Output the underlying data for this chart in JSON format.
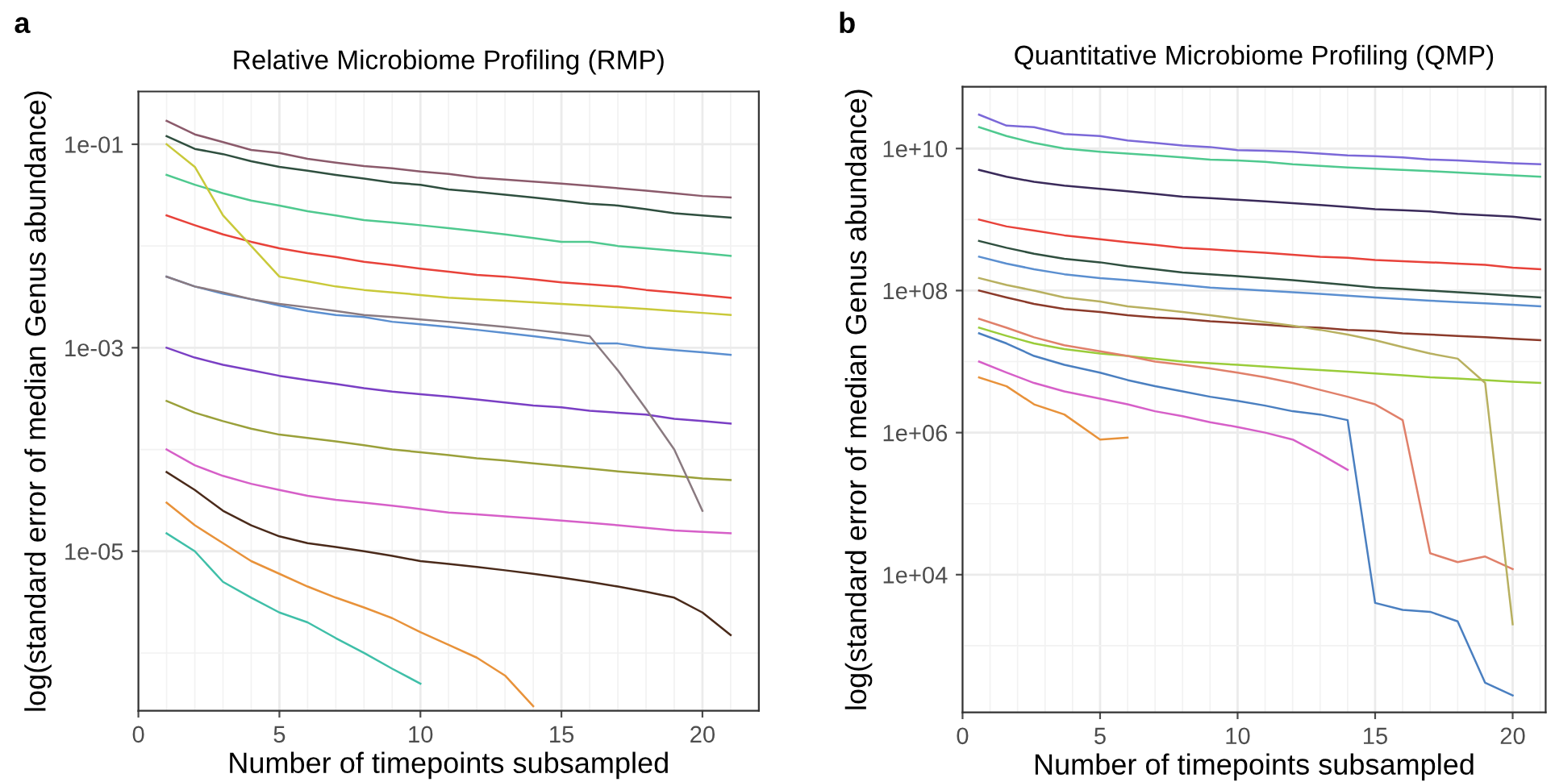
{
  "chart_data": [
    {
      "type": "line",
      "title": "Relative Microbiome Profiling (RMP)",
      "xlabel": "Number of timepoints subsampled",
      "ylabel": "log(standard error of median Genus abundance)",
      "annotations": [
        "a"
      ],
      "log": "y",
      "grid": true,
      "legend": false,
      "marker": "none",
      "line_style": "solid",
      "xlim": [
        0,
        22
      ],
      "xticks": [
        0,
        {
          "value": 1,
          "label": null
        },
        {
          "value": 2,
          "label": null
        },
        {
          "value": 3,
          "label": null
        },
        {
          "value": 4,
          "label": null
        },
        5,
        {
          "value": 6,
          "label": null
        },
        {
          "value": 7,
          "label": null
        },
        {
          "value": 8,
          "label": null
        },
        {
          "value": 9,
          "label": null
        },
        10,
        {
          "value": 11,
          "label": null
        },
        {
          "value": 12,
          "label": null
        },
        {
          "value": 13,
          "label": null
        },
        {
          "value": 14,
          "label": null
        },
        15,
        {
          "value": 16,
          "label": null
        },
        {
          "value": 17,
          "label": null
        },
        {
          "value": 18,
          "label": null
        },
        {
          "value": 19,
          "label": null
        },
        20,
        {
          "value": 21,
          "label": null
        }
      ],
      "ylim": [
        2.7e-07,
        0.33
      ],
      "yticks": [
        {
          "value": 1e-06,
          "label": null
        },
        {
          "value": 1e-05,
          "label": "1e-05"
        },
        {
          "value": 0.0001,
          "label": null
        },
        {
          "value": 0.001,
          "label": "1e-03"
        },
        {
          "value": 0.01,
          "label": null
        },
        {
          "value": 0.1,
          "label": "1e-01"
        }
      ],
      "x": [
        1,
        2,
        3,
        4,
        5,
        6,
        7,
        8,
        9,
        10,
        11,
        12,
        13,
        14,
        15,
        16,
        17,
        18,
        19,
        20,
        21
      ],
      "series": [
        {
          "color": "#8b5a6b",
          "values": [
            0.17,
            0.125,
            0.105,
            0.088,
            0.082,
            0.072,
            0.066,
            0.061,
            0.058,
            0.054,
            0.051,
            0.047,
            0.045,
            0.043,
            0.041,
            0.039,
            0.037,
            0.035,
            0.033,
            0.031,
            0.03
          ]
        },
        {
          "color": "#2f4f3f",
          "values": [
            0.12,
            0.09,
            0.08,
            0.068,
            0.06,
            0.055,
            0.05,
            0.046,
            0.042,
            0.04,
            0.036,
            0.034,
            0.032,
            0.03,
            0.028,
            0.026,
            0.025,
            0.023,
            0.021,
            0.02,
            0.019
          ]
        },
        {
          "color": "#4fc98f",
          "values": [
            0.05,
            0.04,
            0.033,
            0.028,
            0.025,
            0.022,
            0.02,
            0.018,
            0.017,
            0.016,
            0.015,
            0.014,
            0.013,
            0.012,
            0.011,
            0.011,
            0.01,
            0.0095,
            0.009,
            0.0085,
            0.008
          ]
        },
        {
          "color": "#e8423a",
          "values": [
            0.02,
            0.016,
            0.013,
            0.011,
            0.0095,
            0.0085,
            0.0078,
            0.007,
            0.0065,
            0.006,
            0.0056,
            0.0052,
            0.005,
            0.0047,
            0.0044,
            0.0042,
            0.004,
            0.0037,
            0.0035,
            0.0033,
            0.0031
          ]
        },
        {
          "color": "#5b8fd0",
          "values": [
            0.005,
            0.004,
            0.0034,
            0.003,
            0.0026,
            0.0023,
            0.0021,
            0.002,
            0.0018,
            0.0017,
            0.0016,
            0.0015,
            0.0014,
            0.0013,
            0.0012,
            0.0011,
            0.0011,
            0.001,
            0.00095,
            0.0009,
            0.00085
          ]
        },
        {
          "color": "#7a3fc4",
          "values": [
            0.001,
            0.0008,
            0.00068,
            0.0006,
            0.00053,
            0.00048,
            0.00044,
            0.0004,
            0.00037,
            0.00035,
            0.00033,
            0.00031,
            0.00029,
            0.00027,
            0.00026,
            0.00024,
            0.00023,
            0.00022,
            0.0002,
            0.00019,
            0.00018
          ]
        },
        {
          "color": "#9aa03a",
          "values": [
            0.0003,
            0.00023,
            0.00019,
            0.00016,
            0.00014,
            0.00013,
            0.00012,
            0.00011,
            0.0001,
            9.4e-05,
            8.8e-05,
            8.2e-05,
            7.8e-05,
            7.3e-05,
            6.9e-05,
            6.5e-05,
            6.1e-05,
            5.8e-05,
            5.5e-05,
            5.2e-05,
            5e-05
          ]
        },
        {
          "color": "#d65fc8",
          "values": [
            0.0001,
            7e-05,
            5.5e-05,
            4.6e-05,
            4e-05,
            3.5e-05,
            3.2e-05,
            3e-05,
            2.8e-05,
            2.6e-05,
            2.4e-05,
            2.3e-05,
            2.2e-05,
            2.1e-05,
            2e-05,
            1.9e-05,
            1.8e-05,
            1.7e-05,
            1.6e-05,
            1.55e-05,
            1.5e-05
          ]
        },
        {
          "color": "#e8923a",
          "values": [
            3e-05,
            1.8e-05,
            1.2e-05,
            8e-06,
            6e-06,
            4.5e-06,
            3.5e-06,
            2.8e-06,
            2.2e-06,
            1.6e-06,
            1.2e-06,
            9e-07,
            6e-07,
            3e-07,
            null,
            null,
            null,
            null,
            null,
            null,
            null
          ]
        },
        {
          "color": "#3fbfa8",
          "values": [
            1.5e-05,
            1e-05,
            5e-06,
            3.5e-06,
            2.5e-06,
            2e-06,
            1.4e-06,
            1e-06,
            7e-07,
            5e-07,
            null,
            null,
            null,
            null,
            null,
            null,
            null,
            null,
            null,
            null,
            null
          ]
        },
        {
          "color": "#c9c93a",
          "values": [
            0.1,
            0.06,
            0.02,
            0.01,
            0.005,
            0.0045,
            0.004,
            0.0037,
            0.0035,
            0.0033,
            0.0031,
            0.003,
            0.0029,
            0.0028,
            0.0027,
            0.0026,
            0.0025,
            0.0024,
            0.0023,
            0.0022,
            0.0021
          ]
        },
        {
          "color": "#8a7a80",
          "values": [
            0.005,
            0.004,
            0.0035,
            0.003,
            0.0027,
            0.0025,
            0.0023,
            0.0021,
            0.002,
            0.0019,
            0.0018,
            0.0017,
            0.0016,
            0.0015,
            0.0014,
            0.0013,
            0.0006,
            0.00025,
            0.0001,
            2.5e-05,
            null
          ]
        },
        {
          "color": "#4a2a1a",
          "values": [
            6e-05,
            4e-05,
            2.5e-05,
            1.8e-05,
            1.4e-05,
            1.2e-05,
            1.1e-05,
            1e-05,
            9e-06,
            8e-06,
            7.5e-06,
            7e-06,
            6.5e-06,
            6e-06,
            5.5e-06,
            5e-06,
            4.5e-06,
            4e-06,
            3.5e-06,
            2.5e-06,
            1.5e-06
          ]
        }
      ]
    },
    {
      "type": "line",
      "title": "Quantitative Microbiome Profiling (QMP)",
      "xlabel": "Number of timepoints subsampled",
      "ylabel": "log(standard error of median Genus abundance)",
      "annotations": [
        "b"
      ],
      "log": "y",
      "grid": true,
      "legend": false,
      "marker": "none",
      "line_style": "solid",
      "xlim": [
        0,
        21.2
      ],
      "xticks": [
        0,
        {
          "value": 1,
          "label": null
        },
        {
          "value": 2,
          "label": null
        },
        {
          "value": 3,
          "label": null
        },
        {
          "value": 4,
          "label": null
        },
        5,
        {
          "value": 6,
          "label": null
        },
        {
          "value": 7,
          "label": null
        },
        {
          "value": 8,
          "label": null
        },
        {
          "value": 9,
          "label": null
        },
        10,
        {
          "value": 11,
          "label": null
        },
        {
          "value": 12,
          "label": null
        },
        {
          "value": 13,
          "label": null
        },
        {
          "value": 14,
          "label": null
        },
        15,
        {
          "value": 16,
          "label": null
        },
        {
          "value": 17,
          "label": null
        },
        {
          "value": 18,
          "label": null
        },
        {
          "value": 19,
          "label": null
        },
        20,
        {
          "value": 21,
          "label": null
        }
      ],
      "ylim": [
        115,
        74000000000.0
      ],
      "yticks": [
        {
          "value": 1000.0,
          "label": null
        },
        {
          "value": 10000.0,
          "label": "1e+04"
        },
        {
          "value": 100000.0,
          "label": null
        },
        {
          "value": 1000000.0,
          "label": "1e+06"
        },
        {
          "value": 10000000.0,
          "label": null
        },
        {
          "value": 100000000.0,
          "label": "1e+08"
        },
        {
          "value": 1000000000.0,
          "label": null
        },
        {
          "value": 10000000000.0,
          "label": "1e+10"
        }
      ],
      "x": [
        0.6,
        1.6,
        2.6,
        3.7,
        5,
        6,
        7,
        8,
        9,
        10,
        11,
        12,
        13,
        14,
        15,
        16,
        17,
        18,
        19,
        20,
        21
      ],
      "series": [
        {
          "color": "#7b68d8",
          "values": [
            30000000000.0,
            21000000000.0,
            20000000000.0,
            16000000000.0,
            15000000000.0,
            13000000000.0,
            12000000000.0,
            11000000000.0,
            10500000000.0,
            9500000000.0,
            9300000000.0,
            9000000000.0,
            8500000000.0,
            8000000000.0,
            7800000000.0,
            7500000000.0,
            7000000000.0,
            6800000000.0,
            6500000000.0,
            6200000000.0,
            6000000000.0
          ]
        },
        {
          "color": "#4fc98f",
          "values": [
            20000000000.0,
            15000000000.0,
            12000000000.0,
            10000000000.0,
            9000000000.0,
            8500000000.0,
            8000000000.0,
            7500000000.0,
            7000000000.0,
            6800000000.0,
            6500000000.0,
            6000000000.0,
            5700000000.0,
            5400000000.0,
            5200000000.0,
            5000000000.0,
            4800000000.0,
            4600000000.0,
            4400000000.0,
            4200000000.0,
            4000000000.0
          ]
        },
        {
          "color": "#3a2a5a",
          "values": [
            5000000000.0,
            4000000000.0,
            3400000000.0,
            3000000000.0,
            2700000000.0,
            2500000000.0,
            2300000000.0,
            2100000000.0,
            2000000000.0,
            1900000000.0,
            1800000000.0,
            1700000000.0,
            1600000000.0,
            1500000000.0,
            1400000000.0,
            1350000000.0,
            1300000000.0,
            1200000000.0,
            1150000000.0,
            1100000000.0,
            1000000000.0
          ]
        },
        {
          "color": "#e8423a",
          "values": [
            1000000000.0,
            800000000.0,
            700000000.0,
            600000000.0,
            530000000.0,
            480000000.0,
            440000000.0,
            400000000.0,
            380000000.0,
            360000000.0,
            340000000.0,
            320000000.0,
            300000000.0,
            290000000.0,
            270000000.0,
            260000000.0,
            250000000.0,
            240000000.0,
            230000000.0,
            210000000.0,
            200000000.0
          ]
        },
        {
          "color": "#5b8fd0",
          "values": [
            300000000.0,
            240000000.0,
            200000000.0,
            170000000.0,
            150000000.0,
            140000000.0,
            130000000.0,
            120000000.0,
            110000000.0,
            105000000.0,
            100000000.0,
            95000000.0,
            90000000.0,
            85000000.0,
            80000000.0,
            76000000.0,
            72000000.0,
            69000000.0,
            66000000.0,
            63000000.0,
            60000000.0
          ]
        },
        {
          "color": "#8b3a2a",
          "values": [
            100000000.0,
            80000000.0,
            65000000.0,
            55000000.0,
            50000000.0,
            45000000.0,
            42000000.0,
            40000000.0,
            37000000.0,
            35000000.0,
            33000000.0,
            31000000.0,
            30000000.0,
            28000000.0,
            27000000.0,
            25000000.0,
            24000000.0,
            23000000.0,
            22000000.0,
            21000000.0,
            20000000.0
          ]
        },
        {
          "color": "#9acc3a",
          "values": [
            30000000.0,
            23000000.0,
            18000000.0,
            15000000.0,
            13000000.0,
            12000000.0,
            11000000.0,
            10000000.0,
            9500000.0,
            9000000.0,
            8500000.0,
            8000000.0,
            7600000.0,
            7200000.0,
            6800000.0,
            6400000.0,
            6000000.0,
            5800000.0,
            5500000.0,
            5200000.0,
            5000000.0
          ]
        },
        {
          "color": "#d65fc8",
          "values": [
            10000000.0,
            7000000.0,
            5000000.0,
            3800000.0,
            3000000.0,
            2500000.0,
            2000000.0,
            1700000.0,
            1400000.0,
            1200000.0,
            1000000.0,
            800000.0,
            500000.0,
            300000.0,
            null,
            null,
            null,
            null,
            null,
            null,
            null
          ]
        },
        {
          "color": "#e8923a",
          "values": [
            6000000.0,
            4500000.0,
            2500000.0,
            1800000.0,
            800000.0,
            850000.0,
            null,
            null,
            null,
            null,
            null,
            null,
            null,
            null,
            null,
            null,
            null,
            null,
            null,
            null,
            null
          ]
        },
        {
          "color": "#4a7fc0",
          "values": [
            25000000.0,
            18000000.0,
            12000000.0,
            9000000.0,
            7000000.0,
            5500000.0,
            4500000.0,
            3800000.0,
            3200000.0,
            2800000.0,
            2400000.0,
            2000000.0,
            1800000.0,
            1500000.0,
            4000.0,
            3200.0,
            3000.0,
            2200.0,
            300,
            200,
            null
          ]
        },
        {
          "color": "#e0806a",
          "values": [
            40000000.0,
            30000000.0,
            22000000.0,
            17000000.0,
            14000000.0,
            12000000.0,
            10000000.0,
            9000000.0,
            8000000.0,
            7000000.0,
            6000000.0,
            5000000.0,
            4000000.0,
            3200000.0,
            2500000.0,
            1500000.0,
            20000.0,
            15000.0,
            18000.0,
            12000.0,
            null
          ]
        },
        {
          "color": "#b8b060",
          "values": [
            150000000.0,
            120000000.0,
            100000000.0,
            80000000.0,
            70000000.0,
            60000000.0,
            55000000.0,
            50000000.0,
            45000000.0,
            40000000.0,
            36000000.0,
            32000000.0,
            28000000.0,
            24000000.0,
            20000000.0,
            16000000.0,
            13000000.0,
            11000000.0,
            5000000.0,
            2000.0,
            null
          ]
        },
        {
          "color": "#2f4f3f",
          "values": [
            500000000.0,
            400000000.0,
            330000000.0,
            280000000.0,
            250000000.0,
            220000000.0,
            200000000.0,
            180000000.0,
            170000000.0,
            160000000.0,
            150000000.0,
            140000000.0,
            130000000.0,
            120000000.0,
            110000000.0,
            105000000.0,
            100000000.0,
            95000000.0,
            90000000.0,
            85000000.0,
            80000000.0
          ]
        }
      ]
    }
  ]
}
